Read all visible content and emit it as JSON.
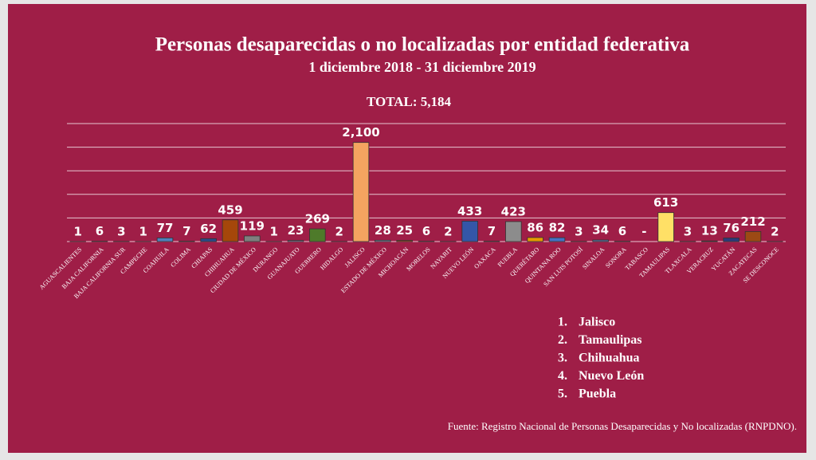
{
  "chart_data": {
    "type": "bar",
    "title": "Personas desaparecidas o no localizadas por entidad federativa",
    "subtitle": "1 diciembre 2018 -  31 diciembre 2019",
    "total": "TOTAL: 5,184",
    "categories": [
      "AGUASCALIENTES",
      "BAJA CALIFORNIA",
      "BAJA CALIFORNIA SUR",
      "CAMPECHE",
      "COAHUILA",
      "COLIMA",
      "CHIAPAS",
      "CHIHUAHUA",
      "CIUDAD DE MÉXICO",
      "DURANGO",
      "GUANAJUATO",
      "GUERRERO",
      "HIDALGO",
      "JALISCO",
      "ESTADO DE MÉXICO",
      "MICHOACÁN",
      "MORELOS",
      "NAYARIT",
      "NUEVO LEÓN",
      "OAXACA",
      "PUEBLA",
      "QUERÉTARO",
      "QUINTANA ROO",
      "SAN LUIS POTOSÍ",
      "SINALOA",
      "SONORA",
      "TABASCO",
      "TAMAULIPAS",
      "TLAXCALA",
      "VERACRUZ",
      "YUCATÁN",
      "ZACATECAS",
      "SE DESCONOCE"
    ],
    "values": [
      1,
      6,
      3,
      1,
      77,
      7,
      62,
      459,
      119,
      1,
      23,
      269,
      2,
      2100,
      28,
      25,
      6,
      2,
      433,
      7,
      423,
      86,
      82,
      3,
      34,
      6,
      null,
      613,
      3,
      13,
      76,
      212,
      2
    ],
    "value_labels": [
      "1",
      "6",
      "3",
      "1",
      "77",
      "7",
      "62",
      "459",
      "119",
      "1",
      "23",
      "269",
      "2",
      "2,100",
      "28",
      "25",
      "6",
      "2",
      "433",
      "7",
      "423",
      "86",
      "82",
      "3",
      "34",
      "6",
      "-",
      "613",
      "3",
      "13",
      "76",
      "212",
      "2"
    ],
    "colors": [
      "#7f8fb0",
      "#7f8fb0",
      "#7f8fb0",
      "#7f8fb0",
      "#4f81bd",
      "#7f8fb0",
      "#2a4a8a",
      "#a5470a",
      "#7f7f7f",
      "#7f8fb0",
      "#7f8fb0",
      "#4e7a2a",
      "#7f8fb0",
      "#f4a460",
      "#7f8fb0",
      "#9c4a14",
      "#7f8fb0",
      "#7f8fb0",
      "#3456a8",
      "#7f8fb0",
      "#8c8c8c",
      "#e69b00",
      "#4472c4",
      "#7f8fb0",
      "#5a6fa0",
      "#7f8fb0",
      "#7f8fb0",
      "#ffe066",
      "#7f8fb0",
      "#7f8fb0",
      "#2b3a7a",
      "#9c4a14",
      "#7f8fb0"
    ],
    "ylim": [
      0,
      2500
    ],
    "yticks": [
      0,
      500,
      1000,
      1500,
      2000,
      2500
    ],
    "grid": true,
    "ranking": [
      {
        "number": "1.",
        "name": "Jalisco"
      },
      {
        "number": "2.",
        "name": "Tamaulipas"
      },
      {
        "number": "3.",
        "name": "Chihuahua"
      },
      {
        "number": "4.",
        "name": "Nuevo León"
      },
      {
        "number": "5.",
        "name": "Puebla"
      }
    ],
    "source": "Fuente: Registro Nacional de Personas Desaparecidas y No localizadas (RNPDNO)."
  }
}
